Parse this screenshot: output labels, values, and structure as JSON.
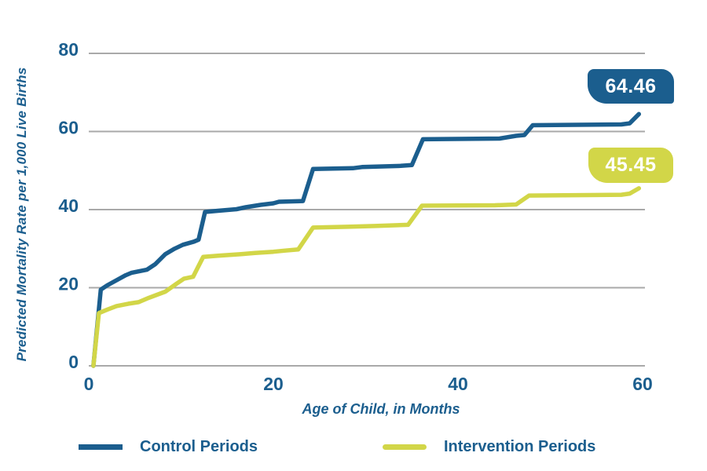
{
  "colors": {
    "control_blue": "#1b5e8e",
    "intervention_yellow": "#d2d648",
    "grid_gray": "#a9a9a9",
    "text_blue": "#1b5e8e",
    "badge_text": "#ffffff"
  },
  "chart_data": {
    "type": "line",
    "subtype": "step-survival-curves",
    "title": "",
    "xlabel": "Age of Child, in Months",
    "ylabel": "Predicted Mortality Rate per 1,000 Live Births",
    "xlim": [
      0,
      60
    ],
    "ylim": [
      0,
      80
    ],
    "x_ticks": [
      0,
      20,
      40,
      60
    ],
    "y_ticks": [
      0,
      20,
      40,
      60,
      80
    ],
    "grid": "horizontal",
    "legend_position": "bottom",
    "series": [
      {
        "name": "Control Periods",
        "color": "#1b5e8e",
        "end_label": "64.46",
        "points": [
          [
            0.5,
            0
          ],
          [
            1.3,
            19.5
          ],
          [
            2,
            20.6
          ],
          [
            3,
            21.9
          ],
          [
            4,
            23.2
          ],
          [
            4.6,
            23.8
          ],
          [
            6.3,
            24.6
          ],
          [
            7.2,
            26
          ],
          [
            8.3,
            28.6
          ],
          [
            9.3,
            30
          ],
          [
            10.2,
            31
          ],
          [
            11.4,
            31.8
          ],
          [
            11.9,
            32.3
          ],
          [
            12.6,
            39.4
          ],
          [
            14,
            39.7
          ],
          [
            16,
            40.1
          ],
          [
            17,
            40.6
          ],
          [
            18.6,
            41.2
          ],
          [
            20,
            41.6
          ],
          [
            20.6,
            42
          ],
          [
            23.2,
            42.2
          ],
          [
            24.3,
            50.4
          ],
          [
            28.6,
            50.6
          ],
          [
            29.6,
            50.9
          ],
          [
            33.8,
            51.2
          ],
          [
            35,
            51.4
          ],
          [
            36.2,
            58
          ],
          [
            44.5,
            58.2
          ],
          [
            46.3,
            58.9
          ],
          [
            47.2,
            59.1
          ],
          [
            48.1,
            61.6
          ],
          [
            57.7,
            61.8
          ],
          [
            58.6,
            62.1
          ],
          [
            59.6,
            64.46
          ]
        ]
      },
      {
        "name": "Intervention Periods",
        "color": "#d2d648",
        "end_label": "45.45",
        "points": [
          [
            0.5,
            0
          ],
          [
            1.1,
            13.5
          ],
          [
            2,
            14.4
          ],
          [
            3,
            15.3
          ],
          [
            4.3,
            15.9
          ],
          [
            5.4,
            16.3
          ],
          [
            6.5,
            17.4
          ],
          [
            8.3,
            19
          ],
          [
            9.5,
            21
          ],
          [
            10.3,
            22.3
          ],
          [
            11.3,
            22.8
          ],
          [
            12.4,
            27.9
          ],
          [
            14,
            28.2
          ],
          [
            16.5,
            28.6
          ],
          [
            18,
            28.9
          ],
          [
            20,
            29.2
          ],
          [
            21.3,
            29.5
          ],
          [
            22.7,
            29.8
          ],
          [
            24.3,
            35.4
          ],
          [
            28,
            35.6
          ],
          [
            31,
            35.8
          ],
          [
            34.6,
            36.1
          ],
          [
            36.1,
            41
          ],
          [
            44,
            41.1
          ],
          [
            46.3,
            41.3
          ],
          [
            47.7,
            43.6
          ],
          [
            57.7,
            43.8
          ],
          [
            58.6,
            44.1
          ],
          [
            59.6,
            45.45
          ]
        ]
      }
    ]
  },
  "legend": {
    "control_label": "Control Periods",
    "intervention_label": "Intervention Periods"
  }
}
